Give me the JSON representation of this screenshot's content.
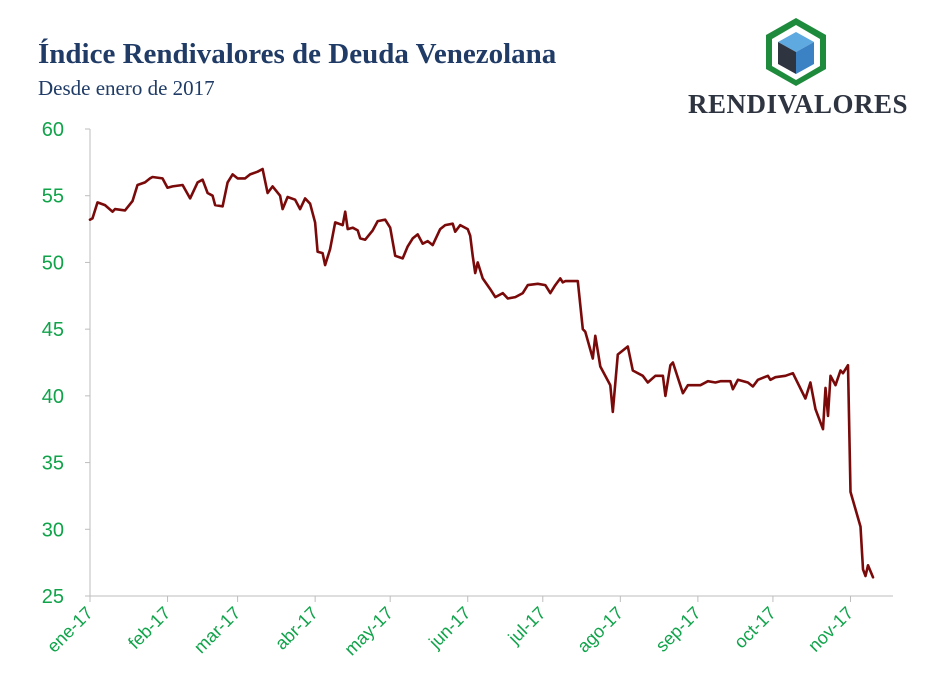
{
  "header": {
    "title": "Índice Rendivalores de Deuda Venezolana",
    "subtitle": "Desde enero de 2017"
  },
  "brand": {
    "name": "RENDIVALORES",
    "logo_icon": "cube-icon",
    "colors": {
      "green": "#1e8a3c",
      "blue": "#3b82c4",
      "dark": "#2e3440"
    }
  },
  "chart_data": {
    "type": "line",
    "title": "Índice Rendivalores de Deuda Venezolana",
    "subtitle": "Desde enero de 2017",
    "xlabel": "",
    "ylabel": "",
    "ylim": [
      25,
      60
    ],
    "yticks": [
      25,
      30,
      35,
      40,
      45,
      50,
      55,
      60
    ],
    "xlim": [
      "2017-01-01",
      "2017-11-18"
    ],
    "xticks": [
      {
        "date": "2017-01-01",
        "label": "ene-17"
      },
      {
        "date": "2017-02-01",
        "label": "feb-17"
      },
      {
        "date": "2017-03-01",
        "label": "mar-17"
      },
      {
        "date": "2017-04-01",
        "label": "abr-17"
      },
      {
        "date": "2017-05-01",
        "label": "may-17"
      },
      {
        "date": "2017-06-01",
        "label": "jun-17"
      },
      {
        "date": "2017-07-01",
        "label": "jul-17"
      },
      {
        "date": "2017-08-01",
        "label": "ago-17"
      },
      {
        "date": "2017-09-01",
        "label": "sep-17"
      },
      {
        "date": "2017-10-01",
        "label": "oct-17"
      },
      {
        "date": "2017-11-01",
        "label": "nov-17"
      }
    ],
    "grid": false,
    "line_color": "#7a0a0a",
    "axis_text_color": "#10a34a",
    "series": [
      {
        "points": [
          [
            "2017-01-01",
            53.2
          ],
          [
            "2017-01-02",
            53.3
          ],
          [
            "2017-01-04",
            54.5
          ],
          [
            "2017-01-07",
            54.3
          ],
          [
            "2017-01-10",
            53.8
          ],
          [
            "2017-01-11",
            54.0
          ],
          [
            "2017-01-15",
            53.9
          ],
          [
            "2017-01-18",
            54.6
          ],
          [
            "2017-01-20",
            55.8
          ],
          [
            "2017-01-23",
            56.0
          ],
          [
            "2017-01-25",
            56.3
          ],
          [
            "2017-01-26",
            56.4
          ],
          [
            "2017-01-30",
            56.3
          ],
          [
            "2017-02-01",
            55.6
          ],
          [
            "2017-02-03",
            55.7
          ],
          [
            "2017-02-07",
            55.8
          ],
          [
            "2017-02-10",
            54.8
          ],
          [
            "2017-02-13",
            56.0
          ],
          [
            "2017-02-15",
            56.2
          ],
          [
            "2017-02-17",
            55.2
          ],
          [
            "2017-02-19",
            55.0
          ],
          [
            "2017-02-20",
            54.3
          ],
          [
            "2017-02-23",
            54.2
          ],
          [
            "2017-02-25",
            56.0
          ],
          [
            "2017-02-27",
            56.6
          ],
          [
            "2017-03-01",
            56.3
          ],
          [
            "2017-03-04",
            56.3
          ],
          [
            "2017-03-06",
            56.6
          ],
          [
            "2017-03-09",
            56.8
          ],
          [
            "2017-03-11",
            57.0
          ],
          [
            "2017-03-13",
            55.2
          ],
          [
            "2017-03-15",
            55.7
          ],
          [
            "2017-03-18",
            55.0
          ],
          [
            "2017-03-19",
            54.0
          ],
          [
            "2017-03-21",
            54.9
          ],
          [
            "2017-03-24",
            54.7
          ],
          [
            "2017-03-26",
            54.0
          ],
          [
            "2017-03-28",
            54.8
          ],
          [
            "2017-03-30",
            54.4
          ],
          [
            "2017-04-01",
            53.0
          ],
          [
            "2017-04-02",
            50.8
          ],
          [
            "2017-04-04",
            50.7
          ],
          [
            "2017-04-05",
            49.8
          ],
          [
            "2017-04-07",
            51.0
          ],
          [
            "2017-04-09",
            53.0
          ],
          [
            "2017-04-12",
            52.8
          ],
          [
            "2017-04-13",
            53.8
          ],
          [
            "2017-04-14",
            52.5
          ],
          [
            "2017-04-16",
            52.6
          ],
          [
            "2017-04-18",
            52.4
          ],
          [
            "2017-04-19",
            51.8
          ],
          [
            "2017-04-21",
            51.7
          ],
          [
            "2017-04-24",
            52.4
          ],
          [
            "2017-04-26",
            53.1
          ],
          [
            "2017-04-29",
            53.2
          ],
          [
            "2017-05-01",
            52.6
          ],
          [
            "2017-05-03",
            50.5
          ],
          [
            "2017-05-06",
            50.3
          ],
          [
            "2017-05-08",
            51.2
          ],
          [
            "2017-05-10",
            51.8
          ],
          [
            "2017-05-12",
            52.1
          ],
          [
            "2017-05-14",
            51.4
          ],
          [
            "2017-05-16",
            51.6
          ],
          [
            "2017-05-18",
            51.3
          ],
          [
            "2017-05-21",
            52.5
          ],
          [
            "2017-05-23",
            52.8
          ],
          [
            "2017-05-26",
            52.9
          ],
          [
            "2017-05-27",
            52.3
          ],
          [
            "2017-05-29",
            52.8
          ],
          [
            "2017-06-01",
            52.5
          ],
          [
            "2017-06-02",
            52.0
          ],
          [
            "2017-06-03",
            50.5
          ],
          [
            "2017-06-04",
            49.2
          ],
          [
            "2017-06-05",
            50.0
          ],
          [
            "2017-06-07",
            48.8
          ],
          [
            "2017-06-10",
            48.0
          ],
          [
            "2017-06-12",
            47.4
          ],
          [
            "2017-06-15",
            47.7
          ],
          [
            "2017-06-17",
            47.3
          ],
          [
            "2017-06-20",
            47.4
          ],
          [
            "2017-06-23",
            47.7
          ],
          [
            "2017-06-25",
            48.3
          ],
          [
            "2017-06-29",
            48.4
          ],
          [
            "2017-07-02",
            48.3
          ],
          [
            "2017-07-04",
            47.7
          ],
          [
            "2017-07-06",
            48.3
          ],
          [
            "2017-07-08",
            48.8
          ],
          [
            "2017-07-09",
            48.5
          ],
          [
            "2017-07-10",
            48.6
          ],
          [
            "2017-07-15",
            48.6
          ],
          [
            "2017-07-17",
            45.0
          ],
          [
            "2017-07-18",
            44.8
          ],
          [
            "2017-07-21",
            42.8
          ],
          [
            "2017-07-22",
            44.5
          ],
          [
            "2017-07-24",
            42.2
          ],
          [
            "2017-07-28",
            40.8
          ],
          [
            "2017-07-29",
            38.8
          ],
          [
            "2017-07-31",
            43.1
          ],
          [
            "2017-08-04",
            43.7
          ],
          [
            "2017-08-06",
            41.9
          ],
          [
            "2017-08-10",
            41.5
          ],
          [
            "2017-08-12",
            41.0
          ],
          [
            "2017-08-15",
            41.5
          ],
          [
            "2017-08-18",
            41.5
          ],
          [
            "2017-08-19",
            40.0
          ],
          [
            "2017-08-21",
            42.3
          ],
          [
            "2017-08-22",
            42.5
          ],
          [
            "2017-08-26",
            40.2
          ],
          [
            "2017-08-28",
            40.8
          ],
          [
            "2017-09-02",
            40.8
          ],
          [
            "2017-09-05",
            41.1
          ],
          [
            "2017-09-08",
            41.0
          ],
          [
            "2017-09-10",
            41.1
          ],
          [
            "2017-09-14",
            41.1
          ],
          [
            "2017-09-15",
            40.5
          ],
          [
            "2017-09-17",
            41.2
          ],
          [
            "2017-09-21",
            41.0
          ],
          [
            "2017-09-23",
            40.7
          ],
          [
            "2017-09-25",
            41.2
          ],
          [
            "2017-09-29",
            41.5
          ],
          [
            "2017-09-30",
            41.2
          ],
          [
            "2017-10-02",
            41.4
          ],
          [
            "2017-10-06",
            41.5
          ],
          [
            "2017-10-09",
            41.7
          ],
          [
            "2017-10-14",
            39.8
          ],
          [
            "2017-10-16",
            41.0
          ],
          [
            "2017-10-18",
            39.0
          ],
          [
            "2017-10-21",
            37.5
          ],
          [
            "2017-10-22",
            40.6
          ],
          [
            "2017-10-23",
            38.5
          ],
          [
            "2017-10-24",
            41.5
          ],
          [
            "2017-10-26",
            40.8
          ],
          [
            "2017-10-28",
            41.9
          ],
          [
            "2017-10-29",
            41.7
          ],
          [
            "2017-10-31",
            42.3
          ],
          [
            "2017-11-01",
            32.8
          ],
          [
            "2017-11-05",
            30.2
          ],
          [
            "2017-11-06",
            27.0
          ],
          [
            "2017-11-07",
            26.5
          ],
          [
            "2017-11-08",
            27.3
          ],
          [
            "2017-11-10",
            26.4
          ]
        ]
      }
    ]
  }
}
